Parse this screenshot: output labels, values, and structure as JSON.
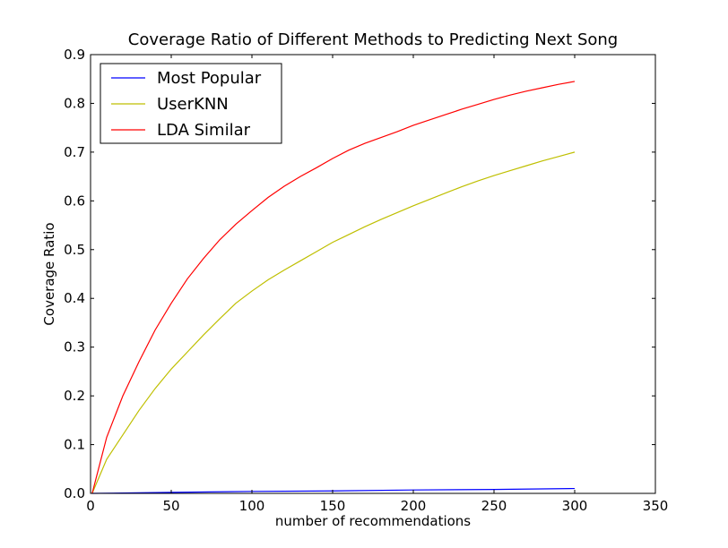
{
  "chart_data": {
    "type": "line",
    "title": "Coverage Ratio of Different Methods to Predicting Next Song",
    "xlabel": "number of recommendations",
    "ylabel": "Coverage Ratio",
    "xlim": [
      0,
      350
    ],
    "ylim": [
      0,
      0.9
    ],
    "xticks": [
      0,
      50,
      100,
      150,
      200,
      250,
      300,
      350
    ],
    "yticks": [
      0.0,
      0.1,
      0.2,
      0.3,
      0.4,
      0.5,
      0.6,
      0.7,
      0.8,
      0.9
    ],
    "xtick_labels": [
      "0",
      "50",
      "100",
      "150",
      "200",
      "250",
      "300",
      "350"
    ],
    "ytick_labels": [
      "0.0",
      "0.1",
      "0.2",
      "0.3",
      "0.4",
      "0.5",
      "0.6",
      "0.7",
      "0.8",
      "0.9"
    ],
    "grid": false,
    "legend_position": "top-left",
    "series": [
      {
        "name": "Most Popular",
        "color": "#0000ff",
        "x": [
          1,
          50,
          100,
          150,
          200,
          250,
          300
        ],
        "y": [
          0.0,
          0.002,
          0.004,
          0.005,
          0.007,
          0.008,
          0.01
        ]
      },
      {
        "name": "UserKNN",
        "color": "#bfbf00",
        "x": [
          1,
          10,
          20,
          30,
          40,
          50,
          60,
          70,
          80,
          90,
          100,
          110,
          120,
          130,
          140,
          150,
          160,
          170,
          180,
          190,
          200,
          210,
          220,
          230,
          240,
          250,
          260,
          270,
          280,
          290,
          300
        ],
        "y": [
          0.0,
          0.07,
          0.12,
          0.17,
          0.215,
          0.255,
          0.29,
          0.325,
          0.358,
          0.39,
          0.415,
          0.438,
          0.458,
          0.477,
          0.496,
          0.515,
          0.531,
          0.547,
          0.562,
          0.576,
          0.59,
          0.603,
          0.616,
          0.629,
          0.641,
          0.652,
          0.662,
          0.672,
          0.682,
          0.691,
          0.7
        ]
      },
      {
        "name": "LDA Similar",
        "color": "#ff0000",
        "x": [
          1,
          10,
          20,
          30,
          40,
          50,
          60,
          70,
          80,
          90,
          100,
          110,
          120,
          130,
          140,
          150,
          160,
          170,
          180,
          190,
          200,
          210,
          220,
          230,
          240,
          250,
          260,
          270,
          280,
          290,
          300
        ],
        "y": [
          0.0,
          0.115,
          0.2,
          0.27,
          0.335,
          0.39,
          0.44,
          0.482,
          0.52,
          0.552,
          0.58,
          0.607,
          0.63,
          0.65,
          0.668,
          0.687,
          0.704,
          0.718,
          0.73,
          0.742,
          0.755,
          0.766,
          0.777,
          0.788,
          0.798,
          0.808,
          0.817,
          0.825,
          0.832,
          0.839,
          0.845
        ]
      }
    ]
  }
}
